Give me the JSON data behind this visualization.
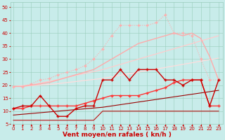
{
  "x": [
    0,
    1,
    2,
    3,
    4,
    5,
    6,
    7,
    8,
    9,
    10,
    11,
    12,
    13,
    14,
    15,
    16,
    17,
    18,
    19,
    20,
    21,
    22,
    23
  ],
  "bg_color": "#c8ecea",
  "grid_color": "#99ccbb",
  "xlabel": "Vent moyen/en rafales ( kn/h )",
  "xlabel_color": "#cc0000",
  "xlabel_fontsize": 6.5,
  "tick_color": "#cc0000",
  "tick_fontsize": 5,
  "ylim": [
    5,
    52
  ],
  "xlim": [
    -0.3,
    23.5
  ],
  "yticks": [
    5,
    10,
    15,
    20,
    25,
    30,
    35,
    40,
    45,
    50
  ],
  "lines": [
    {
      "label": "dotted_light_pink_upper_with_markers",
      "y": [
        19.5,
        19.5,
        20.5,
        22,
        22.5,
        24,
        25,
        26,
        27.5,
        30,
        34,
        39,
        43,
        43,
        43,
        43,
        44,
        47,
        40,
        40,
        39,
        30,
        22,
        22
      ],
      "color": "#ffaaaa",
      "linewidth": 0.8,
      "linestyle": "dotted",
      "marker": "+",
      "markersize": 3,
      "zorder": 3
    },
    {
      "label": "solid_pink_upper_rising_to_40",
      "y": [
        19.5,
        19.5,
        20,
        20.5,
        21,
        22,
        23,
        24,
        25,
        26,
        28,
        30,
        32,
        34,
        36,
        37,
        38,
        39,
        40,
        39,
        40,
        38,
        31,
        22
      ],
      "color": "#ffaaaa",
      "linewidth": 1.0,
      "linestyle": "solid",
      "marker": null,
      "markersize": 0,
      "zorder": 2
    },
    {
      "label": "solid_light_pink_straight_rising",
      "y": [
        19.5,
        19.8,
        20.1,
        20.8,
        21.5,
        22.2,
        23.0,
        23.8,
        24.5,
        25.2,
        26,
        27,
        28,
        29,
        30,
        31,
        32,
        33,
        34,
        35,
        36,
        37,
        38,
        39
      ],
      "color": "#ffcccc",
      "linewidth": 0.9,
      "linestyle": "solid",
      "marker": null,
      "markersize": 0,
      "zorder": 1
    },
    {
      "label": "solid_lightest_pink_lowest_straight",
      "y": [
        19.5,
        19.6,
        19.8,
        20.0,
        20.3,
        20.6,
        21.0,
        21.4,
        21.8,
        22.2,
        22.6,
        23.2,
        23.8,
        24.4,
        25.0,
        25.6,
        26.2,
        26.8,
        27.4,
        28.0,
        28.6,
        29.2,
        29.8,
        30.4
      ],
      "color": "#ffdddd",
      "linewidth": 0.9,
      "linestyle": "solid",
      "marker": null,
      "markersize": 0,
      "zorder": 1
    },
    {
      "label": "dark_red_zigzag_with_markers",
      "y": [
        11,
        12,
        12,
        16,
        12,
        8,
        8,
        11,
        12,
        12,
        22,
        22,
        26,
        22,
        26,
        26,
        26,
        22,
        22,
        20,
        22,
        22,
        12,
        22
      ],
      "color": "#cc0000",
      "linewidth": 1.0,
      "linestyle": "solid",
      "marker": "+",
      "markersize": 3,
      "zorder": 5
    },
    {
      "label": "medium_red_rising_with_markers",
      "y": [
        11,
        11,
        12,
        12,
        12,
        12,
        12,
        12,
        13,
        14,
        15,
        16,
        16,
        16,
        16,
        17,
        18,
        19,
        21,
        22,
        22,
        22,
        12,
        12
      ],
      "color": "#ff3333",
      "linewidth": 1.0,
      "linestyle": "solid",
      "marker": "+",
      "markersize": 2.5,
      "zorder": 4
    },
    {
      "label": "dark_red_straight_rising",
      "y": [
        8.5,
        8.8,
        9.1,
        9.4,
        9.7,
        10.0,
        10.3,
        10.6,
        10.9,
        11.2,
        11.5,
        12.0,
        12.5,
        13.0,
        13.5,
        14.0,
        14.5,
        15.0,
        15.5,
        16.0,
        16.5,
        17.0,
        17.5,
        18.0
      ],
      "color": "#990000",
      "linewidth": 0.8,
      "linestyle": "solid",
      "marker": null,
      "markersize": 0,
      "zorder": 2
    },
    {
      "label": "dark_flat_then_step",
      "y": [
        6.5,
        6.5,
        6.5,
        6.5,
        6.5,
        6.5,
        6.5,
        6.5,
        6.5,
        6.5,
        10,
        10,
        10,
        10,
        10,
        10,
        10,
        10,
        10,
        10,
        10,
        10,
        10,
        10
      ],
      "color": "#bb1111",
      "linewidth": 0.8,
      "linestyle": "solid",
      "marker": null,
      "markersize": 0,
      "zorder": 1
    }
  ]
}
